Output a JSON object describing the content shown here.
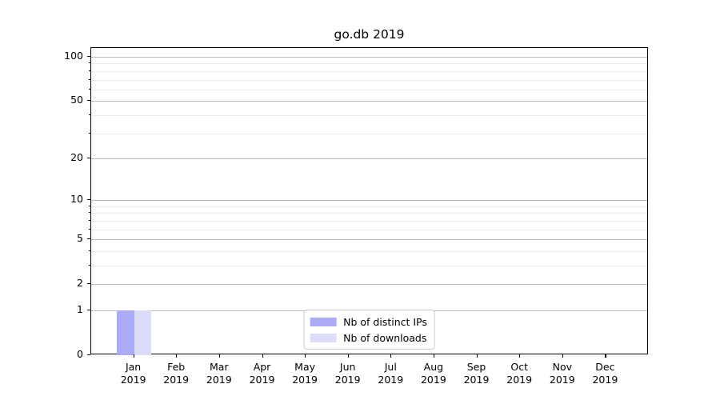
{
  "chart_data": {
    "type": "bar",
    "title": "go.db 2019",
    "x_axis": {
      "months": [
        "Jan",
        "Feb",
        "Mar",
        "Apr",
        "May",
        "Jun",
        "Jul",
        "Aug",
        "Sep",
        "Oct",
        "Nov",
        "Dec"
      ],
      "year": "2019"
    },
    "y_axis": {
      "scale": "log1p",
      "tick_labels": [
        0,
        1,
        2,
        5,
        10,
        20,
        50,
        100
      ],
      "minor_gridlines": [
        3,
        4,
        6,
        7,
        8,
        9,
        30,
        40,
        60,
        70,
        80,
        90
      ],
      "range": [
        0,
        115
      ]
    },
    "series": [
      {
        "name": "Nb of distinct IPs",
        "color": "#aaaaf7",
        "values": [
          1,
          0,
          0,
          0,
          0,
          0,
          0,
          0,
          0,
          0,
          0,
          0
        ]
      },
      {
        "name": "Nb of downloads",
        "color": "#dcdcfa",
        "values": [
          1,
          0,
          0,
          0,
          0,
          0,
          0,
          0,
          0,
          0,
          0,
          0
        ]
      }
    ],
    "grid": {
      "major_color": "#bababa",
      "minor_color": "#ebebeb"
    },
    "legend": {
      "position": "lower center"
    }
  }
}
